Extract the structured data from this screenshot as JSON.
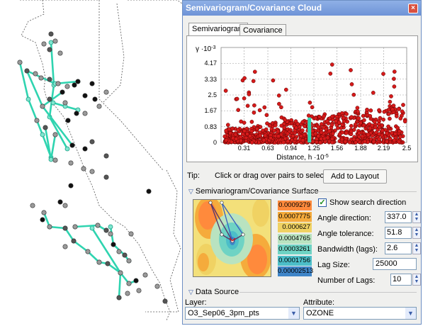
{
  "window": {
    "title": "Semivariogram/Covariance Cloud",
    "close_label": "×"
  },
  "tabs": [
    {
      "label": "Semivariogram",
      "active": true
    },
    {
      "label": "Covariance",
      "active": false
    }
  ],
  "chart_data": {
    "type": "scatter",
    "ylabel_prefix": "γ ·10",
    "ylabel_exp": "-3",
    "xlabel_prefix": "Distance, h ·10",
    "xlabel_exp": "-5",
    "y_ticks": [
      "4.17",
      "3.33",
      "2.5",
      "1.67",
      "0.83",
      "0"
    ],
    "x_ticks": [
      "0.31",
      "0.63",
      "0.94",
      "1.25",
      "1.56",
      "1.88",
      "2.19",
      "2.5"
    ],
    "xlim": [
      0,
      2.5
    ],
    "ylim": [
      0,
      5
    ],
    "grid": true,
    "point_color": "#d61a1a",
    "selected_color": "#2fd4b0",
    "selected_x": 1.19
  },
  "tip": {
    "label": "Tip:",
    "text": "Click or drag over pairs to select",
    "button": "Add to Layout"
  },
  "surface_section": {
    "title": "Semivariogram/Covariance Surface",
    "colorbar": [
      "0.0009279",
      "0.0007775",
      "0.000627",
      "0.0004765",
      "0.0003261",
      "0.0001756",
      "0.00002513"
    ],
    "colorbar_colors": [
      "#ff8a3c",
      "#f5ab3c",
      "#f0d263",
      "#b9e3c0",
      "#6fd3c4",
      "#4cbec8",
      "#3f85c8"
    ],
    "show_search_direction": "Show search direction",
    "angle_direction_label": "Angle direction:",
    "angle_direction_value": "337.0",
    "angle_tolerance_label": "Angle tolerance:",
    "angle_tolerance_value": "51.8",
    "bandwidth_label": "Bandwidth (lags):",
    "bandwidth_value": "2.6",
    "lag_size_label": "Lag Size:",
    "lag_size_value": "25000",
    "num_lags_label": "Number of Lags:",
    "num_lags_value": "10"
  },
  "data_source": {
    "title": "Data Source",
    "layer_label": "Layer:",
    "layer_value": "O3_Sep06_3pm_pts",
    "attribute_label": "Attribute:",
    "attribute_value": "OZONE"
  },
  "map": {
    "line_color": "#2fd4b0",
    "outline_color": "#555555"
  }
}
